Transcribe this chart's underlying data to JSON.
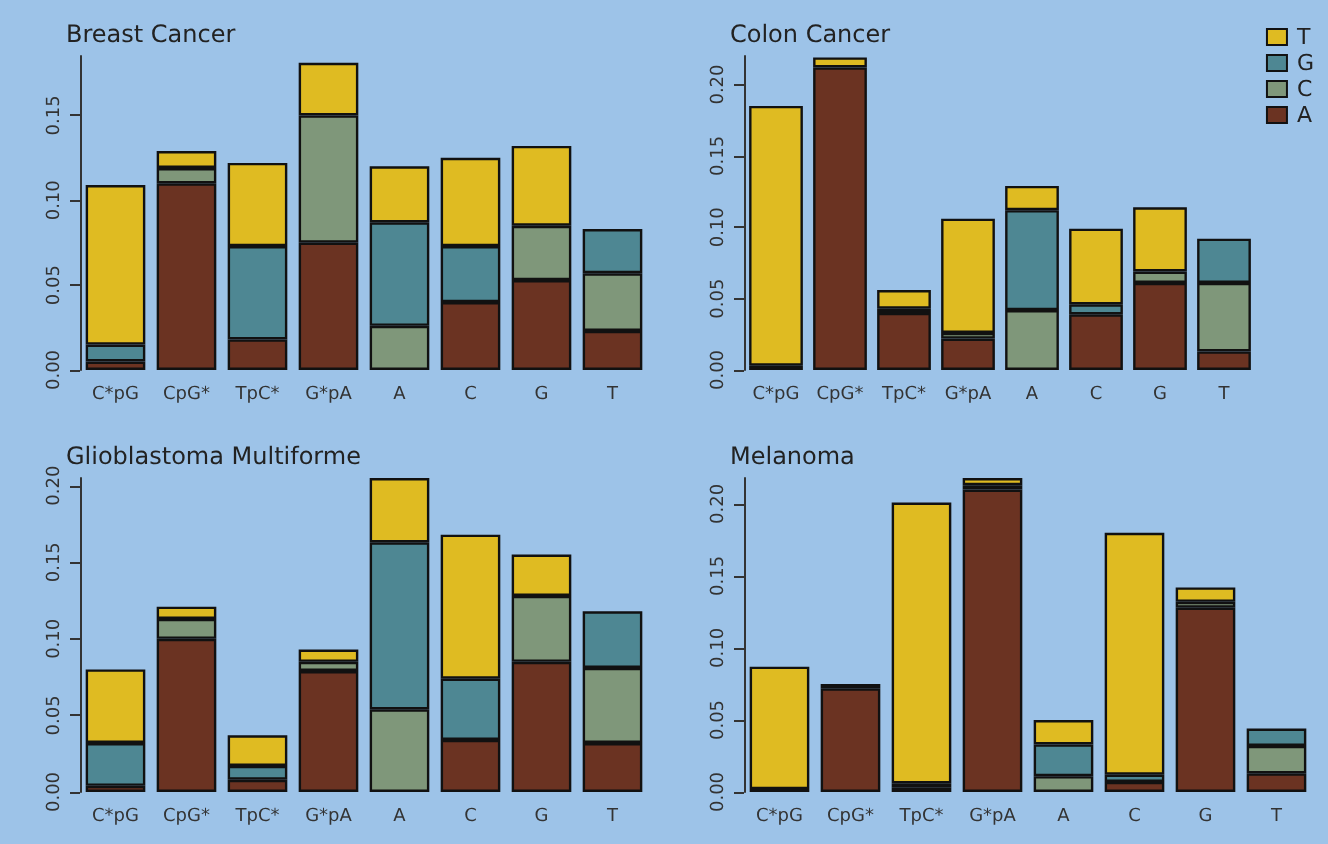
{
  "chart_data": [
    {
      "type": "bar",
      "title": "Breast Cancer",
      "categories": [
        "C*pG",
        "CpG*",
        "TpC*",
        "G*pA",
        "A",
        "C",
        "G",
        "T"
      ],
      "stacked": true,
      "ylim": [
        0,
        0.185
      ],
      "yticks": [
        {
          "value": 0,
          "label": "0.00"
        },
        {
          "value": 0.05,
          "label": "0.05"
        },
        {
          "value": 0.1,
          "label": "0.10"
        },
        {
          "value": 0.15,
          "label": "0.15"
        }
      ],
      "series": [
        {
          "color": "#6b3322",
          "values": [
            0.005,
            0.11,
            0.018,
            0.075,
            0,
            0.04,
            0.053,
            0.023
          ]
        },
        {
          "color": "#7f977a",
          "values": [
            0,
            0.009,
            0,
            0.075,
            0.026,
            0,
            0.032,
            0.034
          ]
        },
        {
          "color": "#4e8793",
          "values": [
            0.01,
            0,
            0.055,
            0,
            0.061,
            0.033,
            0,
            0.026
          ]
        },
        {
          "color": "#dfbb22",
          "values": [
            0.094,
            0.01,
            0.049,
            0.031,
            0.033,
            0.052,
            0.047,
            0
          ]
        }
      ]
    },
    {
      "type": "bar",
      "title": "Colon Cancer",
      "categories": [
        "C*pG",
        "CpG*",
        "TpC*",
        "G*pA",
        "A",
        "C",
        "G",
        "T"
      ],
      "stacked": true,
      "legend": "top right",
      "ylim": [
        0,
        0.22
      ],
      "yticks": [
        {
          "value": 0,
          "label": "0.00"
        },
        {
          "value": 0.05,
          "label": "0.05"
        },
        {
          "value": 0.1,
          "label": "0.10"
        },
        {
          "value": 0.15,
          "label": "0.15"
        },
        {
          "value": 0.2,
          "label": "0.20"
        }
      ],
      "series": [
        {
          "name": "A",
          "color": "#6b3322",
          "values": [
            0.003,
            0.212,
            0.04,
            0.022,
            0,
            0.039,
            0.061,
            0.013
          ]
        },
        {
          "name": "C",
          "color": "#7f977a",
          "values": [
            0,
            0,
            0,
            0.004,
            0.042,
            0,
            0.008,
            0.048
          ]
        },
        {
          "name": "G",
          "color": "#4e8793",
          "values": [
            0,
            0,
            0.003,
            0,
            0.07,
            0.007,
            0,
            0.031
          ]
        },
        {
          "name": "T",
          "color": "#dfbb22",
          "values": [
            0.182,
            0.007,
            0.013,
            0.08,
            0.017,
            0.053,
            0.045,
            0
          ]
        }
      ]
    },
    {
      "type": "bar",
      "title": "Glioblastoma Multiforme",
      "categories": [
        "C*pG",
        "CpG*",
        "TpC*",
        "G*pA",
        "A",
        "C",
        "G",
        "T"
      ],
      "stacked": true,
      "ylim": [
        0,
        0.205
      ],
      "yticks": [
        {
          "value": 0,
          "label": "0.00"
        },
        {
          "value": 0.05,
          "label": "0.05"
        },
        {
          "value": 0.1,
          "label": "0.10"
        },
        {
          "value": 0.15,
          "label": "0.15"
        },
        {
          "value": 0.2,
          "label": "0.20"
        }
      ],
      "series": [
        {
          "color": "#6b3322",
          "values": [
            0.004,
            0.1,
            0.008,
            0.079,
            0,
            0.034,
            0.085,
            0.032
          ]
        },
        {
          "color": "#7f977a",
          "values": [
            0,
            0.013,
            0,
            0.006,
            0.054,
            0,
            0.043,
            0.049
          ]
        },
        {
          "color": "#4e8793",
          "values": [
            0.028,
            0,
            0.009,
            0,
            0.109,
            0.04,
            0,
            0.037
          ]
        },
        {
          "color": "#dfbb22",
          "values": [
            0.048,
            0.008,
            0.02,
            0.008,
            0.042,
            0.094,
            0.027,
            0
          ]
        }
      ]
    },
    {
      "type": "bar",
      "title": "Melanoma",
      "categories": [
        "C*pG",
        "CpG*",
        "TpC*",
        "G*pA",
        "A",
        "C",
        "G",
        "T"
      ],
      "stacked": true,
      "ylim": [
        0,
        0.218
      ],
      "yticks": [
        {
          "value": 0,
          "label": "0.00"
        },
        {
          "value": 0.05,
          "label": "0.05"
        },
        {
          "value": 0.1,
          "label": "0.10"
        },
        {
          "value": 0.15,
          "label": "0.15"
        },
        {
          "value": 0.2,
          "label": "0.20"
        }
      ],
      "series": [
        {
          "color": "#6b3322",
          "values": [
            0.002,
            0.072,
            0.003,
            0.21,
            0,
            0.007,
            0.128,
            0.013
          ]
        },
        {
          "color": "#7f977a",
          "values": [
            0,
            0,
            0,
            0,
            0.011,
            0,
            0.004,
            0.019
          ]
        },
        {
          "color": "#4e8793",
          "values": [
            0,
            null,
            0.003,
            0.003,
            0.022,
            0.005,
            0,
            0.012
          ]
        },
        {
          "color": "#dfbb22",
          "values": [
            0.085,
            0.003,
            0.195,
            0.005,
            0.017,
            0.168,
            0.01,
            0
          ]
        }
      ]
    }
  ]
}
